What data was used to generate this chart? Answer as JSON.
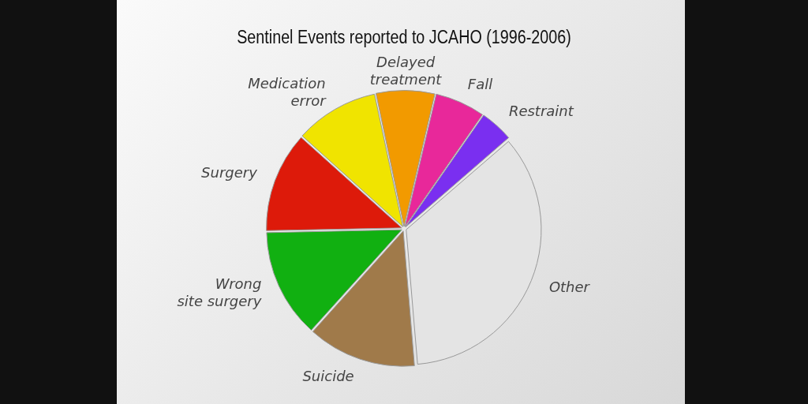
{
  "chart_data": {
    "type": "pie",
    "title": "Sentinel Events reported to JCAHO (1996-2006)",
    "categories": [
      "Delayed treatment",
      "Fall",
      "Restraint",
      "Other",
      "Suicide",
      "Wrong site surgery",
      "Surgery",
      "Medication error"
    ],
    "values": [
      7,
      6,
      4,
      35,
      13,
      13,
      12,
      10
    ],
    "colors": [
      "#f29a00",
      "#e8289a",
      "#7a2ff0",
      "#e4e4e4",
      "#a07a4a",
      "#11b011",
      "#dd1a0a",
      "#f0e400"
    ],
    "legend": false
  }
}
